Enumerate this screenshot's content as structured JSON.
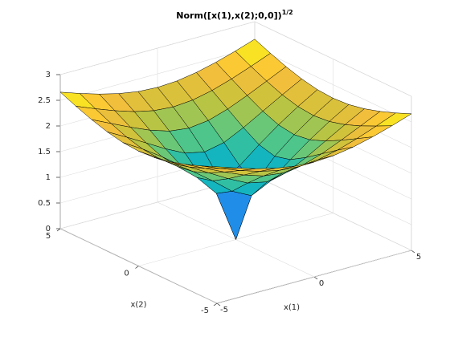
{
  "chart_data": {
    "type": "surface",
    "title": "Norm([x(1),x(2);0,0])",
    "title_superscript": "1/2",
    "xlabel": "x(1)",
    "ylabel": "x(2)",
    "x": [
      -5,
      -4,
      -3,
      -2,
      -1,
      0,
      1,
      2,
      3,
      4,
      5
    ],
    "y": [
      -5,
      -4,
      -3,
      -2,
      -1,
      0,
      1,
      2,
      3,
      4,
      5
    ],
    "z": [
      [
        2.659,
        2.53,
        2.415,
        2.321,
        2.258,
        2.236,
        2.258,
        2.321,
        2.415,
        2.53,
        2.659
      ],
      [
        2.53,
        2.378,
        2.236,
        2.115,
        2.031,
        2,
        2.031,
        2.115,
        2.236,
        2.378,
        2.53
      ],
      [
        2.415,
        2.236,
        2.06,
        1.899,
        1.778,
        1.732,
        1.778,
        1.899,
        2.06,
        2.236,
        2.415
      ],
      [
        2.321,
        2.115,
        1.899,
        1.682,
        1.495,
        1.414,
        1.495,
        1.682,
        1.899,
        2.115,
        2.321
      ],
      [
        2.258,
        2.031,
        1.778,
        1.495,
        1.189,
        1,
        1.189,
        1.495,
        1.778,
        2.031,
        2.258
      ],
      [
        2.236,
        2,
        1.732,
        1.414,
        1,
        0,
        1,
        1.414,
        1.732,
        2,
        2.236
      ],
      [
        2.258,
        2.031,
        1.778,
        1.495,
        1.189,
        1,
        1.189,
        1.495,
        1.778,
        2.031,
        2.258
      ],
      [
        2.321,
        2.115,
        1.899,
        1.682,
        1.495,
        1.414,
        1.495,
        1.682,
        1.899,
        2.115,
        2.321
      ],
      [
        2.415,
        2.236,
        2.06,
        1.899,
        1.778,
        1.732,
        1.778,
        1.899,
        2.06,
        2.236,
        2.415
      ],
      [
        2.53,
        2.378,
        2.236,
        2.115,
        2.031,
        2,
        2.031,
        2.115,
        2.236,
        2.378,
        2.53
      ],
      [
        2.659,
        2.53,
        2.415,
        2.321,
        2.258,
        2.236,
        2.258,
        2.321,
        2.415,
        2.53,
        2.659
      ]
    ],
    "xlim": [
      -5,
      5
    ],
    "ylim": [
      -5,
      5
    ],
    "zlim": [
      0,
      3
    ],
    "xticks": [
      -5,
      0,
      5
    ],
    "yticks": [
      -5,
      0,
      5
    ],
    "zticks": [
      0,
      0.5,
      1,
      1.5,
      2,
      2.5,
      3
    ],
    "grid": true,
    "colormap": "parula",
    "edgecolor": "#000000"
  }
}
